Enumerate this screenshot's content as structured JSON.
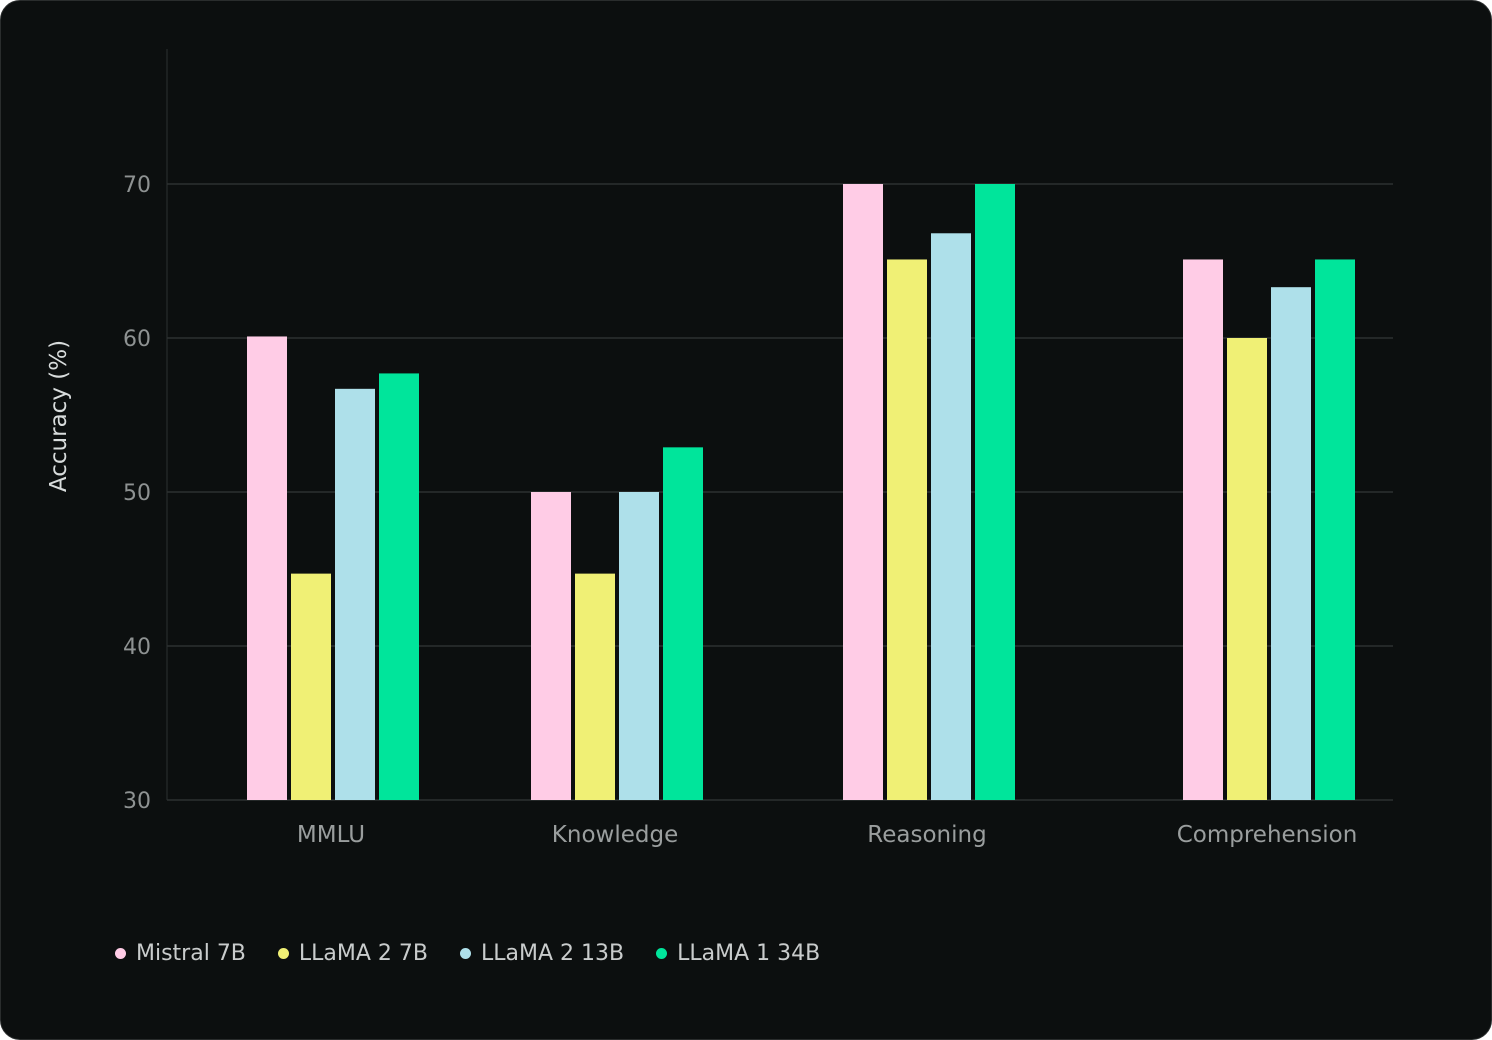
{
  "chart_data": {
    "type": "bar",
    "title": "",
    "xlabel": "",
    "ylabel": "Accuracy (%)",
    "ylim": [
      30,
      75
    ],
    "yticks": [
      30,
      40,
      50,
      60,
      70
    ],
    "grid": true,
    "legend_placement": "bottom-left",
    "categories": [
      "MMLU",
      "Knowledge",
      "Reasoning",
      "Comprehension"
    ],
    "series": [
      {
        "name": "Mistral 7B",
        "color": "#ffcce6",
        "values": [
          60.1,
          50.0,
          70.0,
          65.1
        ]
      },
      {
        "name": "LLaMA 2 7B",
        "color": "#f0f075",
        "values": [
          44.7,
          44.7,
          65.1,
          60.0
        ]
      },
      {
        "name": "LLaMA 2 13B",
        "color": "#aee0ea",
        "values": [
          56.7,
          50.0,
          66.8,
          63.3
        ]
      },
      {
        "name": "LLaMA 1 34B",
        "color": "#00e59b",
        "values": [
          57.7,
          52.9,
          70.0,
          65.1
        ]
      }
    ]
  }
}
